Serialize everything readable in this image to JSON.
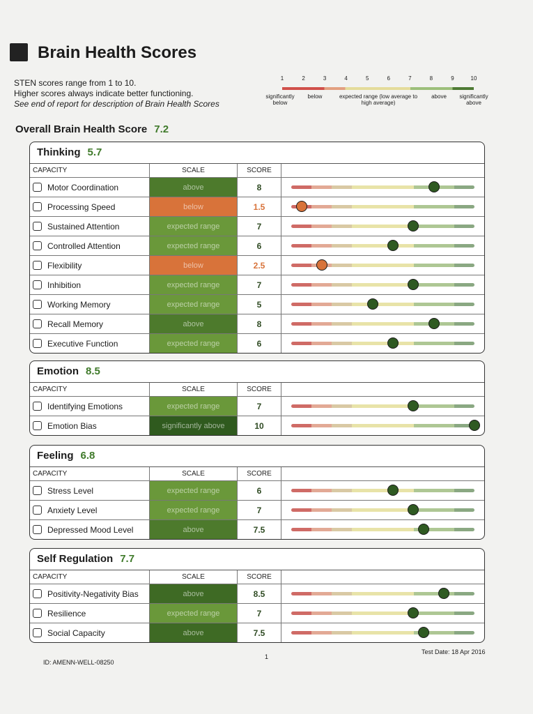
{
  "header": {
    "title": "Brain Health Scores",
    "notes": [
      "STEN scores range from 1 to 10.",
      "Higher scores always indicate better functioning.",
      "See end of report for description of Brain Health Scores"
    ]
  },
  "legend": {
    "ticks": [
      1,
      2,
      3,
      4,
      5,
      6,
      7,
      8,
      9,
      10
    ],
    "bands": [
      "significantly below",
      "below",
      "expected range (low average to high average)",
      "above",
      "significantly above"
    ]
  },
  "overall": {
    "label": "Overall Brain Health Score",
    "score": 7.2
  },
  "column_headers": {
    "capacity": "CAPACITY",
    "scale": "SCALE",
    "score": "SCORE"
  },
  "sections": [
    {
      "title": "Thinking",
      "score": 5.7,
      "rows": [
        {
          "capacity": "Motor Coordination",
          "scale": "above",
          "score": 8,
          "color": "#4d7a2c"
        },
        {
          "capacity": "Processing Speed",
          "scale": "below",
          "score": 1.5,
          "color": "#d8733a",
          "score_color": "#d8733a"
        },
        {
          "capacity": "Sustained Attention",
          "scale": "expected range",
          "score": 7,
          "color": "#6a983a"
        },
        {
          "capacity": "Controlled Attention",
          "scale": "expected range",
          "score": 6,
          "color": "#6a983a"
        },
        {
          "capacity": "Flexibility",
          "scale": "below",
          "score": 2.5,
          "color": "#d8733a",
          "score_color": "#d8733a"
        },
        {
          "capacity": "Inhibition",
          "scale": "expected range",
          "score": 7,
          "color": "#6a983a"
        },
        {
          "capacity": "Working Memory",
          "scale": "expected range",
          "score": 5,
          "color": "#6a983a"
        },
        {
          "capacity": "Recall Memory",
          "scale": "above",
          "score": 8,
          "color": "#4d7a2c"
        },
        {
          "capacity": "Executive Function",
          "scale": "expected range",
          "score": 6,
          "color": "#6a983a"
        }
      ]
    },
    {
      "title": "Emotion",
      "score": 8.5,
      "rows": [
        {
          "capacity": "Identifying Emotions",
          "scale": "expected range",
          "score": 7,
          "color": "#6a983a"
        },
        {
          "capacity": "Emotion Bias",
          "scale": "significantly above",
          "score": 10,
          "color": "#2f5a1e"
        }
      ]
    },
    {
      "title": "Feeling",
      "score": 6.8,
      "rows": [
        {
          "capacity": "Stress Level",
          "scale": "expected range",
          "score": 6,
          "color": "#6a983a"
        },
        {
          "capacity": "Anxiety Level",
          "scale": "expected range",
          "score": 7,
          "color": "#6a983a"
        },
        {
          "capacity": "Depressed Mood Level",
          "scale": "above",
          "score": 7.5,
          "color": "#4d7a2c"
        }
      ]
    },
    {
      "title": "Self Regulation",
      "score": 7.7,
      "rows": [
        {
          "capacity": "Positivity-Negativity Bias",
          "scale": "above",
          "score": 8.5,
          "color": "#3e6a24"
        },
        {
          "capacity": "Resilience",
          "scale": "expected range",
          "score": 7,
          "color": "#6a983a"
        },
        {
          "capacity": "Social Capacity",
          "scale": "above",
          "score": 7.5,
          "color": "#3e6a24"
        }
      ]
    }
  ],
  "footer": {
    "id": "ID: AMENN-WELL-08250",
    "page": "1",
    "test_date": "Test Date: 18 Apr 2016"
  }
}
